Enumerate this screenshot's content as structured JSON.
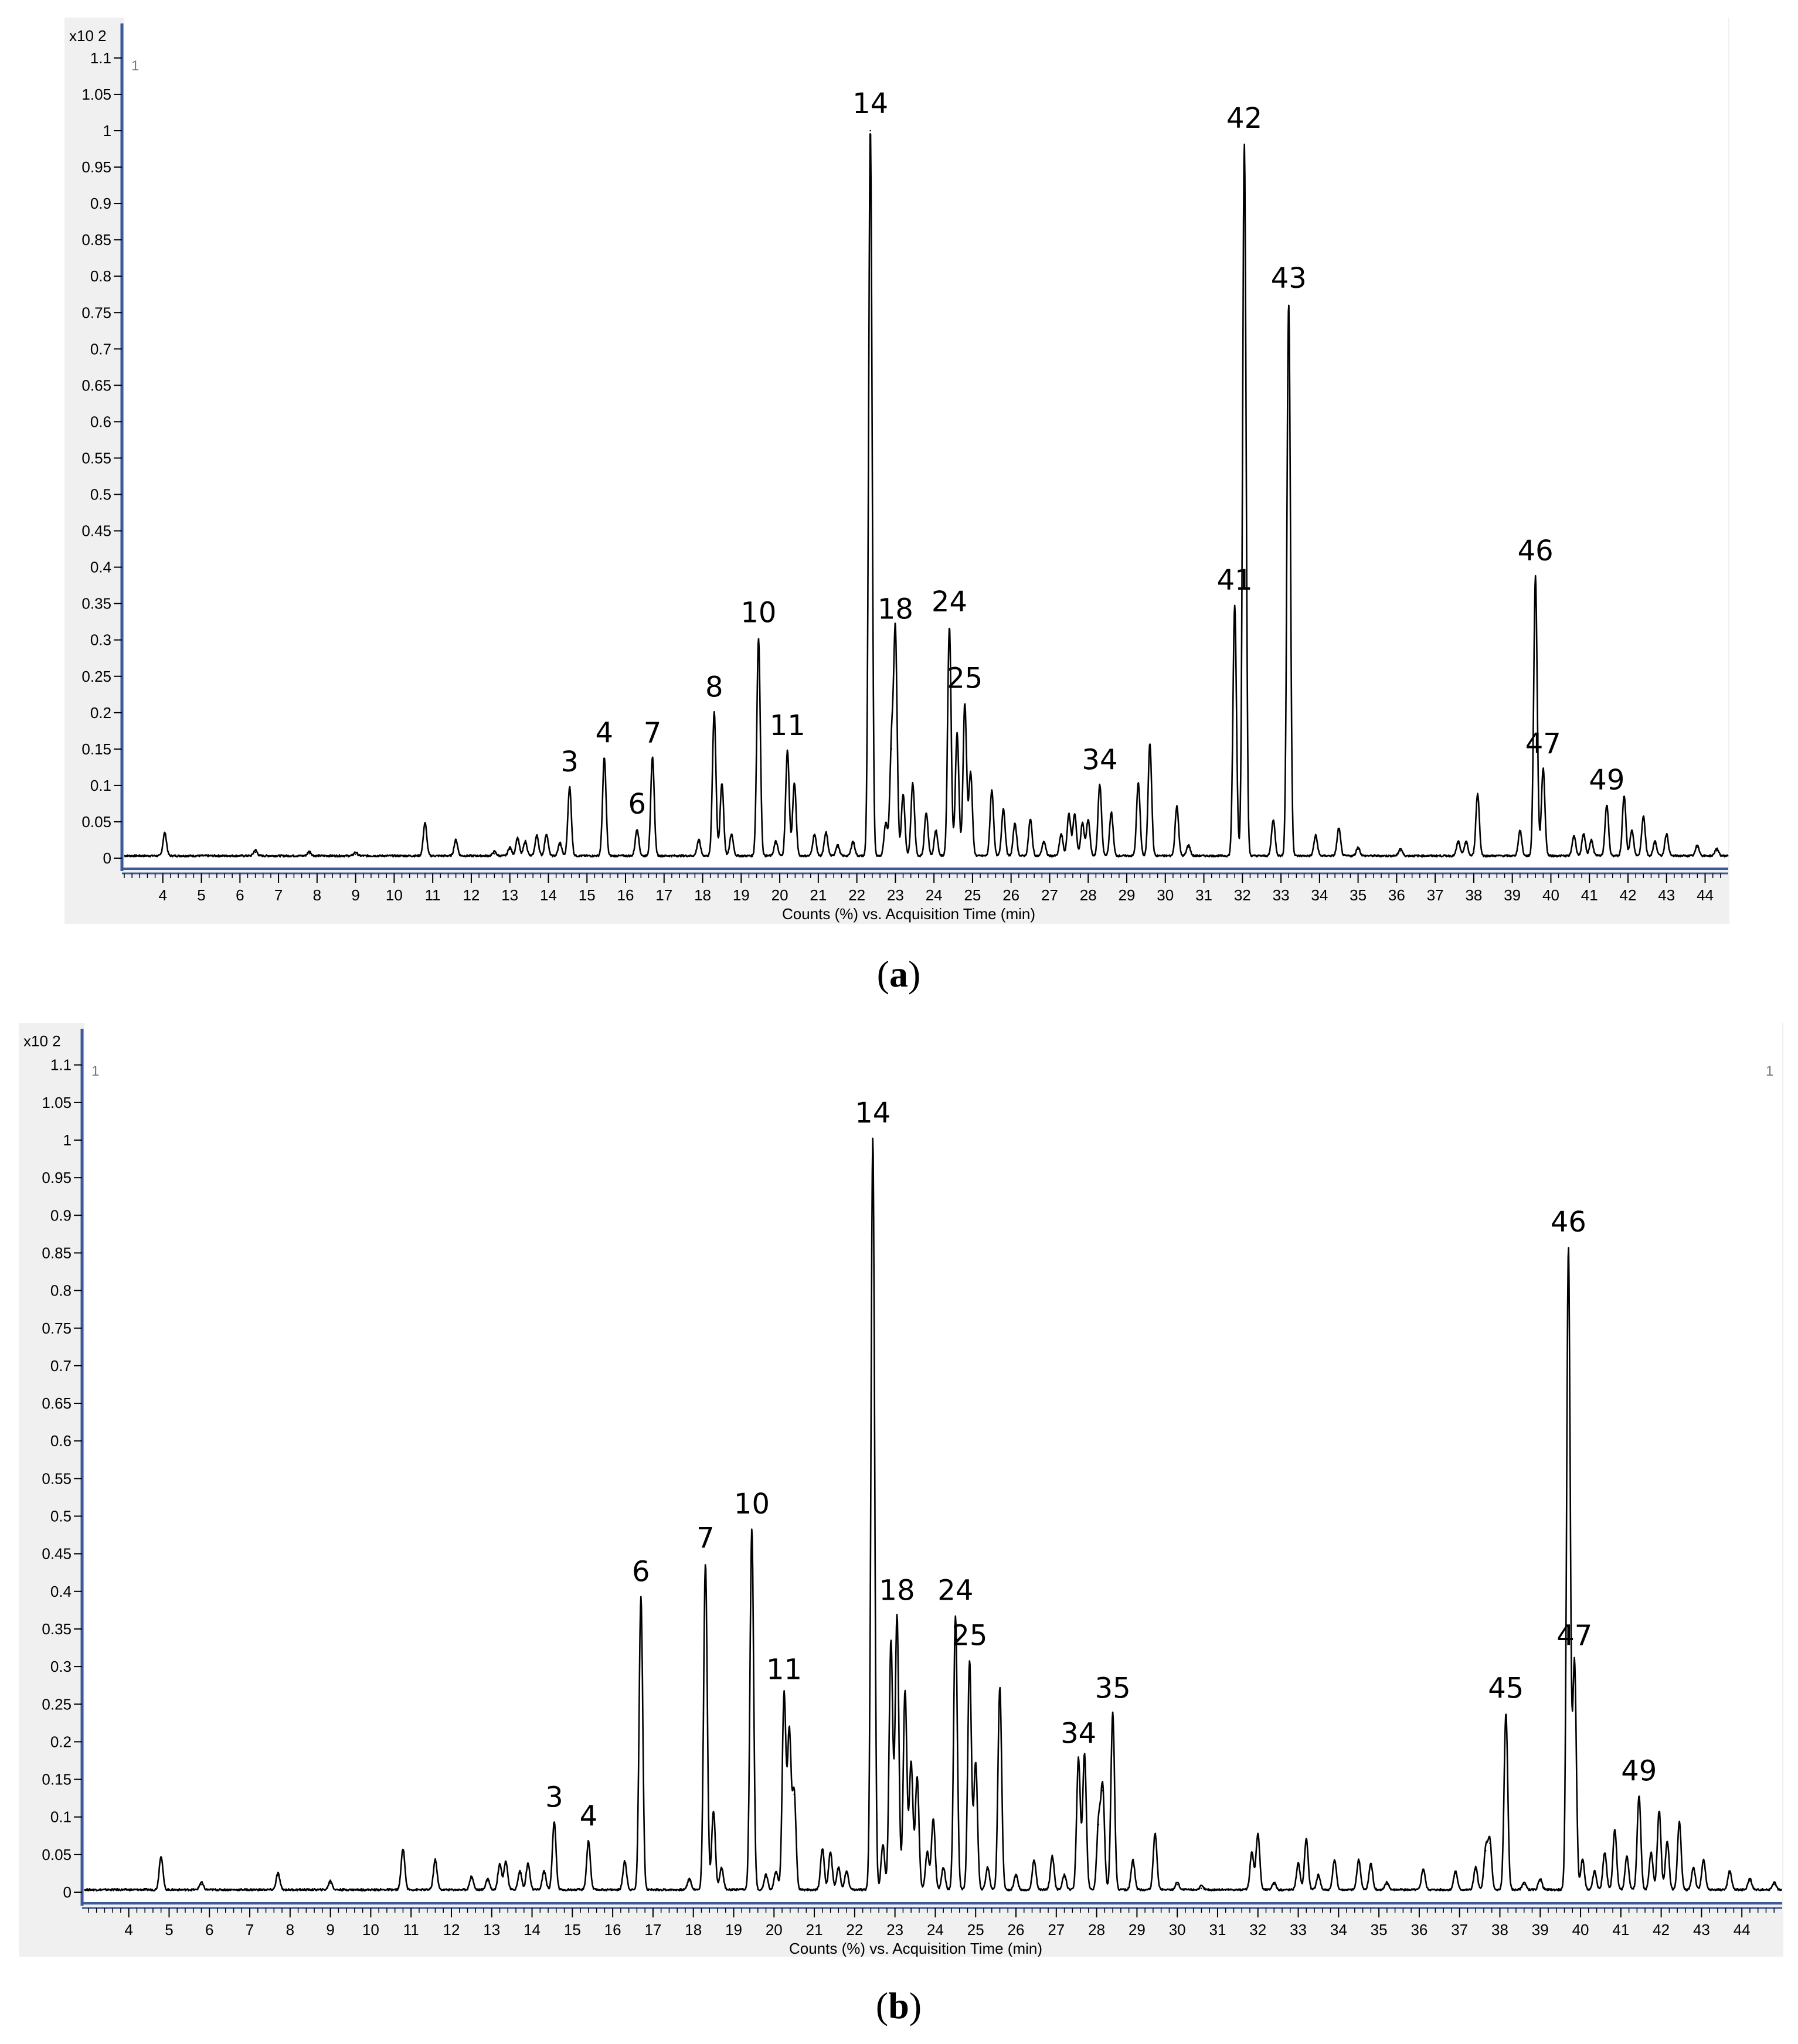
{
  "chart_data": [
    {
      "panel": "a",
      "type": "line",
      "caption_letter": "a",
      "exponent_label": "x10 2",
      "corner_label_left": "1",
      "corner_label_right": "",
      "xlabel": "Counts (%) vs. Acquisition Time (min)",
      "ylabel": "",
      "xlim": [
        3.0,
        44.6
      ],
      "ylim": [
        0,
        1.1
      ],
      "xticks": [
        4,
        5,
        6,
        7,
        8,
        9,
        10,
        11,
        12,
        13,
        14,
        15,
        16,
        17,
        18,
        19,
        20,
        21,
        22,
        23,
        24,
        25,
        26,
        27,
        28,
        29,
        30,
        31,
        32,
        33,
        34,
        35,
        36,
        37,
        38,
        39,
        40,
        41,
        42,
        43,
        44
      ],
      "yticks": [
        0,
        0.05,
        0.1,
        0.15,
        0.2,
        0.25,
        0.3,
        0.35,
        0.4,
        0.45,
        0.5,
        0.55,
        0.6,
        0.65,
        0.7,
        0.75,
        0.8,
        0.85,
        0.9,
        0.95,
        1,
        1.05,
        1.1
      ],
      "peaks": [
        [
          4.05,
          0.032
        ],
        [
          6.4,
          0.008
        ],
        [
          7.8,
          0.006
        ],
        [
          9.0,
          0.005
        ],
        [
          10.8,
          0.045
        ],
        [
          11.6,
          0.022
        ],
        [
          12.6,
          0.006
        ],
        [
          13.0,
          0.012
        ],
        [
          13.2,
          0.025
        ],
        [
          13.4,
          0.02
        ],
        [
          13.7,
          0.028
        ],
        [
          13.95,
          0.03
        ],
        [
          14.3,
          0.018
        ],
        [
          14.55,
          0.095
        ],
        [
          15.45,
          0.135
        ],
        [
          16.3,
          0.037
        ],
        [
          16.7,
          0.135
        ],
        [
          17.9,
          0.022
        ],
        [
          18.3,
          0.198
        ],
        [
          18.5,
          0.1
        ],
        [
          18.75,
          0.03
        ],
        [
          19.45,
          0.3
        ],
        [
          19.9,
          0.02
        ],
        [
          20.2,
          0.145
        ],
        [
          20.38,
          0.1
        ],
        [
          20.9,
          0.03
        ],
        [
          21.2,
          0.032
        ],
        [
          21.5,
          0.015
        ],
        [
          21.9,
          0.02
        ],
        [
          22.35,
          1.0
        ],
        [
          22.75,
          0.045
        ],
        [
          22.9,
          0.15
        ],
        [
          23.0,
          0.305
        ],
        [
          23.2,
          0.085
        ],
        [
          23.45,
          0.1
        ],
        [
          23.8,
          0.06
        ],
        [
          24.05,
          0.035
        ],
        [
          24.4,
          0.315
        ],
        [
          24.6,
          0.168
        ],
        [
          24.8,
          0.21
        ],
        [
          24.95,
          0.115
        ],
        [
          25.5,
          0.09
        ],
        [
          25.8,
          0.065
        ],
        [
          26.1,
          0.045
        ],
        [
          26.5,
          0.05
        ],
        [
          26.85,
          0.02
        ],
        [
          27.3,
          0.03
        ],
        [
          27.5,
          0.058
        ],
        [
          27.65,
          0.058
        ],
        [
          27.85,
          0.045
        ],
        [
          28.0,
          0.05
        ],
        [
          28.3,
          0.098
        ],
        [
          28.6,
          0.06
        ],
        [
          29.3,
          0.1
        ],
        [
          29.6,
          0.155
        ],
        [
          30.3,
          0.068
        ],
        [
          30.6,
          0.015
        ],
        [
          31.8,
          0.345
        ],
        [
          32.05,
          0.98
        ],
        [
          32.8,
          0.05
        ],
        [
          33.2,
          0.76
        ],
        [
          33.9,
          0.028
        ],
        [
          34.5,
          0.038
        ],
        [
          35.0,
          0.012
        ],
        [
          36.1,
          0.01
        ],
        [
          37.6,
          0.02
        ],
        [
          37.8,
          0.02
        ],
        [
          38.1,
          0.085
        ],
        [
          39.2,
          0.035
        ],
        [
          39.6,
          0.385
        ],
        [
          39.8,
          0.12
        ],
        [
          40.6,
          0.028
        ],
        [
          40.85,
          0.03
        ],
        [
          41.05,
          0.022
        ],
        [
          41.45,
          0.07
        ],
        [
          41.9,
          0.082
        ],
        [
          42.1,
          0.035
        ],
        [
          42.4,
          0.055
        ],
        [
          42.7,
          0.02
        ],
        [
          43.0,
          0.03
        ],
        [
          43.8,
          0.015
        ],
        [
          44.3,
          0.01
        ]
      ],
      "peak_labels": [
        {
          "text": "3",
          "x": 14.55,
          "y": 0.095
        },
        {
          "text": "4",
          "x": 15.45,
          "y": 0.135
        },
        {
          "text": "6",
          "x": 16.3,
          "y": 0.037
        },
        {
          "text": "7",
          "x": 16.7,
          "y": 0.135
        },
        {
          "text": "8",
          "x": 18.3,
          "y": 0.198
        },
        {
          "text": "10",
          "x": 19.45,
          "y": 0.3
        },
        {
          "text": "11",
          "x": 20.2,
          "y": 0.145
        },
        {
          "text": "14",
          "x": 22.35,
          "y": 1.0
        },
        {
          "text": "18",
          "x": 23.0,
          "y": 0.305
        },
        {
          "text": "24",
          "x": 24.4,
          "y": 0.315
        },
        {
          "text": "25",
          "x": 24.8,
          "y": 0.21
        },
        {
          "text": "34",
          "x": 28.3,
          "y": 0.098
        },
        {
          "text": "41",
          "x": 31.8,
          "y": 0.345
        },
        {
          "text": "42",
          "x": 32.05,
          "y": 0.98
        },
        {
          "text": "43",
          "x": 33.2,
          "y": 0.76
        },
        {
          "text": "46",
          "x": 39.6,
          "y": 0.385
        },
        {
          "text": "47",
          "x": 39.8,
          "y": 0.12
        },
        {
          "text": "49",
          "x": 41.45,
          "y": 0.07
        }
      ]
    },
    {
      "panel": "b",
      "type": "line",
      "caption_letter": "b",
      "exponent_label": "x10 2",
      "corner_label_left": "1",
      "corner_label_right": "1",
      "xlabel": "Counts (%) vs. Acquisition Time (min)",
      "ylabel": "",
      "xlim": [
        2.9,
        45.0
      ],
      "ylim": [
        0,
        1.1
      ],
      "xticks": [
        4,
        5,
        6,
        7,
        8,
        9,
        10,
        11,
        12,
        13,
        14,
        15,
        16,
        17,
        18,
        19,
        20,
        21,
        22,
        23,
        24,
        25,
        26,
        27,
        28,
        29,
        30,
        31,
        32,
        33,
        34,
        35,
        36,
        37,
        38,
        39,
        40,
        41,
        42,
        43,
        44
      ],
      "yticks": [
        0,
        0.05,
        0.1,
        0.15,
        0.2,
        0.25,
        0.3,
        0.35,
        0.4,
        0.45,
        0.5,
        0.55,
        0.6,
        0.65,
        0.7,
        0.75,
        0.8,
        0.85,
        0.9,
        0.95,
        1,
        1.05,
        1.1
      ],
      "peaks": [
        [
          4.8,
          0.045
        ],
        [
          5.8,
          0.01
        ],
        [
          7.7,
          0.022
        ],
        [
          9.0,
          0.012
        ],
        [
          10.8,
          0.055
        ],
        [
          11.6,
          0.04
        ],
        [
          12.5,
          0.018
        ],
        [
          12.9,
          0.015
        ],
        [
          13.2,
          0.035
        ],
        [
          13.35,
          0.038
        ],
        [
          13.7,
          0.025
        ],
        [
          13.9,
          0.035
        ],
        [
          14.3,
          0.025
        ],
        [
          14.55,
          0.09
        ],
        [
          15.4,
          0.065
        ],
        [
          16.3,
          0.038
        ],
        [
          16.7,
          0.39
        ],
        [
          17.9,
          0.015
        ],
        [
          18.3,
          0.435
        ],
        [
          18.5,
          0.105
        ],
        [
          18.7,
          0.03
        ],
        [
          19.45,
          0.48
        ],
        [
          19.8,
          0.02
        ],
        [
          20.05,
          0.025
        ],
        [
          20.25,
          0.26
        ],
        [
          20.38,
          0.21
        ],
        [
          20.5,
          0.13
        ],
        [
          21.2,
          0.055
        ],
        [
          21.4,
          0.05
        ],
        [
          21.6,
          0.03
        ],
        [
          21.8,
          0.025
        ],
        [
          22.45,
          1.0
        ],
        [
          22.7,
          0.06
        ],
        [
          22.9,
          0.33
        ],
        [
          23.05,
          0.365
        ],
        [
          23.25,
          0.265
        ],
        [
          23.4,
          0.17
        ],
        [
          23.55,
          0.15
        ],
        [
          23.8,
          0.05
        ],
        [
          23.95,
          0.095
        ],
        [
          24.2,
          0.03
        ],
        [
          24.5,
          0.365
        ],
        [
          24.85,
          0.305
        ],
        [
          25.0,
          0.17
        ],
        [
          25.3,
          0.03
        ],
        [
          25.6,
          0.27
        ],
        [
          26.0,
          0.02
        ],
        [
          26.45,
          0.04
        ],
        [
          26.9,
          0.045
        ],
        [
          27.2,
          0.02
        ],
        [
          27.55,
          0.175
        ],
        [
          27.7,
          0.18
        ],
        [
          28.05,
          0.09
        ],
        [
          28.15,
          0.135
        ],
        [
          28.4,
          0.235
        ],
        [
          28.9,
          0.04
        ],
        [
          29.45,
          0.075
        ],
        [
          30.0,
          0.01
        ],
        [
          30.6,
          0.005
        ],
        [
          31.85,
          0.05
        ],
        [
          32.0,
          0.075
        ],
        [
          32.4,
          0.01
        ],
        [
          33.0,
          0.035
        ],
        [
          33.2,
          0.068
        ],
        [
          33.5,
          0.02
        ],
        [
          33.9,
          0.04
        ],
        [
          34.5,
          0.04
        ],
        [
          34.8,
          0.035
        ],
        [
          35.2,
          0.01
        ],
        [
          36.1,
          0.028
        ],
        [
          36.9,
          0.025
        ],
        [
          37.4,
          0.03
        ],
        [
          37.65,
          0.055
        ],
        [
          37.75,
          0.065
        ],
        [
          38.15,
          0.235
        ],
        [
          38.6,
          0.01
        ],
        [
          39.0,
          0.015
        ],
        [
          39.7,
          0.855
        ],
        [
          39.85,
          0.305
        ],
        [
          40.05,
          0.04
        ],
        [
          40.35,
          0.025
        ],
        [
          40.6,
          0.05
        ],
        [
          40.85,
          0.08
        ],
        [
          41.15,
          0.045
        ],
        [
          41.45,
          0.125
        ],
        [
          41.75,
          0.05
        ],
        [
          41.95,
          0.105
        ],
        [
          42.15,
          0.065
        ],
        [
          42.45,
          0.09
        ],
        [
          42.8,
          0.03
        ],
        [
          43.05,
          0.04
        ],
        [
          43.7,
          0.025
        ],
        [
          44.2,
          0.015
        ],
        [
          44.8,
          0.01
        ]
      ],
      "peak_labels": [
        {
          "text": "3",
          "x": 14.55,
          "y": 0.09
        },
        {
          "text": "4",
          "x": 15.4,
          "y": 0.065
        },
        {
          "text": "6",
          "x": 16.7,
          "y": 0.39
        },
        {
          "text": "7",
          "x": 18.3,
          "y": 0.435
        },
        {
          "text": "10",
          "x": 19.45,
          "y": 0.48
        },
        {
          "text": "11",
          "x": 20.25,
          "y": 0.26
        },
        {
          "text": "14",
          "x": 22.45,
          "y": 1.0
        },
        {
          "text": "18",
          "x": 23.05,
          "y": 0.365
        },
        {
          "text": "24",
          "x": 24.5,
          "y": 0.365
        },
        {
          "text": "25",
          "x": 24.85,
          "y": 0.305
        },
        {
          "text": "34",
          "x": 27.55,
          "y": 0.175
        },
        {
          "text": "35",
          "x": 28.4,
          "y": 0.235
        },
        {
          "text": "45",
          "x": 38.15,
          "y": 0.235
        },
        {
          "text": "46",
          "x": 39.7,
          "y": 0.855
        },
        {
          "text": "47",
          "x": 39.85,
          "y": 0.305
        },
        {
          "text": "49",
          "x": 41.45,
          "y": 0.125
        }
      ]
    }
  ]
}
